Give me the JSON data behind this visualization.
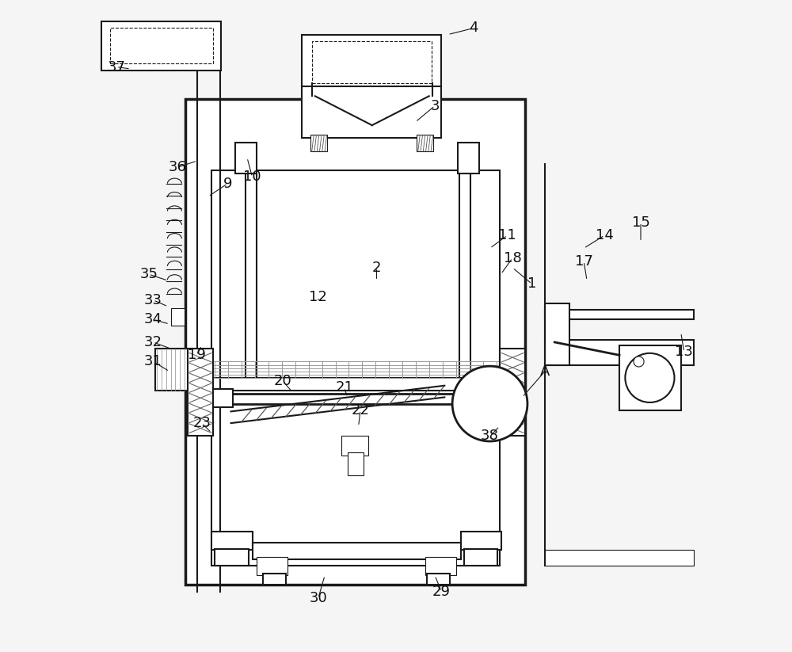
{
  "bg_color": "#f0f0f0",
  "line_color": "#1a1a1a",
  "lw": 1.5,
  "thin_lw": 0.8,
  "fig_bg": "#f5f5f5"
}
